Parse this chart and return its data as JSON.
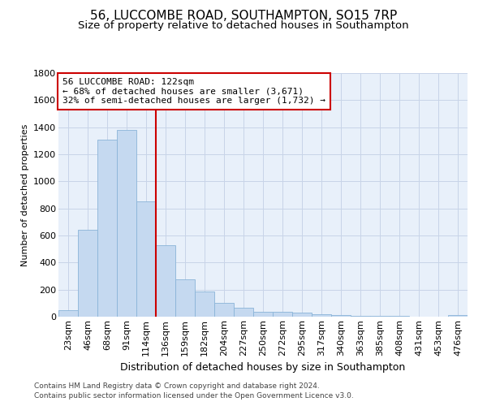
{
  "title_line1": "56, LUCCOMBE ROAD, SOUTHAMPTON, SO15 7RP",
  "title_line2": "Size of property relative to detached houses in Southampton",
  "xlabel": "Distribution of detached houses by size in Southampton",
  "ylabel": "Number of detached properties",
  "categories": [
    "23sqm",
    "46sqm",
    "68sqm",
    "91sqm",
    "114sqm",
    "136sqm",
    "159sqm",
    "182sqm",
    "204sqm",
    "227sqm",
    "250sqm",
    "272sqm",
    "295sqm",
    "317sqm",
    "340sqm",
    "363sqm",
    "385sqm",
    "408sqm",
    "431sqm",
    "453sqm",
    "476sqm"
  ],
  "values": [
    50,
    640,
    1310,
    1380,
    850,
    530,
    275,
    185,
    105,
    65,
    38,
    38,
    30,
    20,
    10,
    8,
    5,
    5,
    3,
    3,
    10
  ],
  "bar_color": "#c5d9f0",
  "bar_edge_color": "#8ab4d8",
  "vline_x": 4.5,
  "vline_color": "#cc0000",
  "annotation_text": "56 LUCCOMBE ROAD: 122sqm\n← 68% of detached houses are smaller (3,671)\n32% of semi-detached houses are larger (1,732) →",
  "annotation_box_color": "#cc0000",
  "ylim": [
    0,
    1800
  ],
  "yticks": [
    0,
    200,
    400,
    600,
    800,
    1000,
    1200,
    1400,
    1600,
    1800
  ],
  "grid_color": "#c8d4e8",
  "bg_color": "#e8f0fa",
  "footer_line1": "Contains HM Land Registry data © Crown copyright and database right 2024.",
  "footer_line2": "Contains public sector information licensed under the Open Government Licence v3.0.",
  "title_fontsize": 11,
  "subtitle_fontsize": 9.5,
  "xlabel_fontsize": 9,
  "ylabel_fontsize": 8,
  "tick_fontsize": 8,
  "annotation_fontsize": 8,
  "footer_fontsize": 6.5
}
